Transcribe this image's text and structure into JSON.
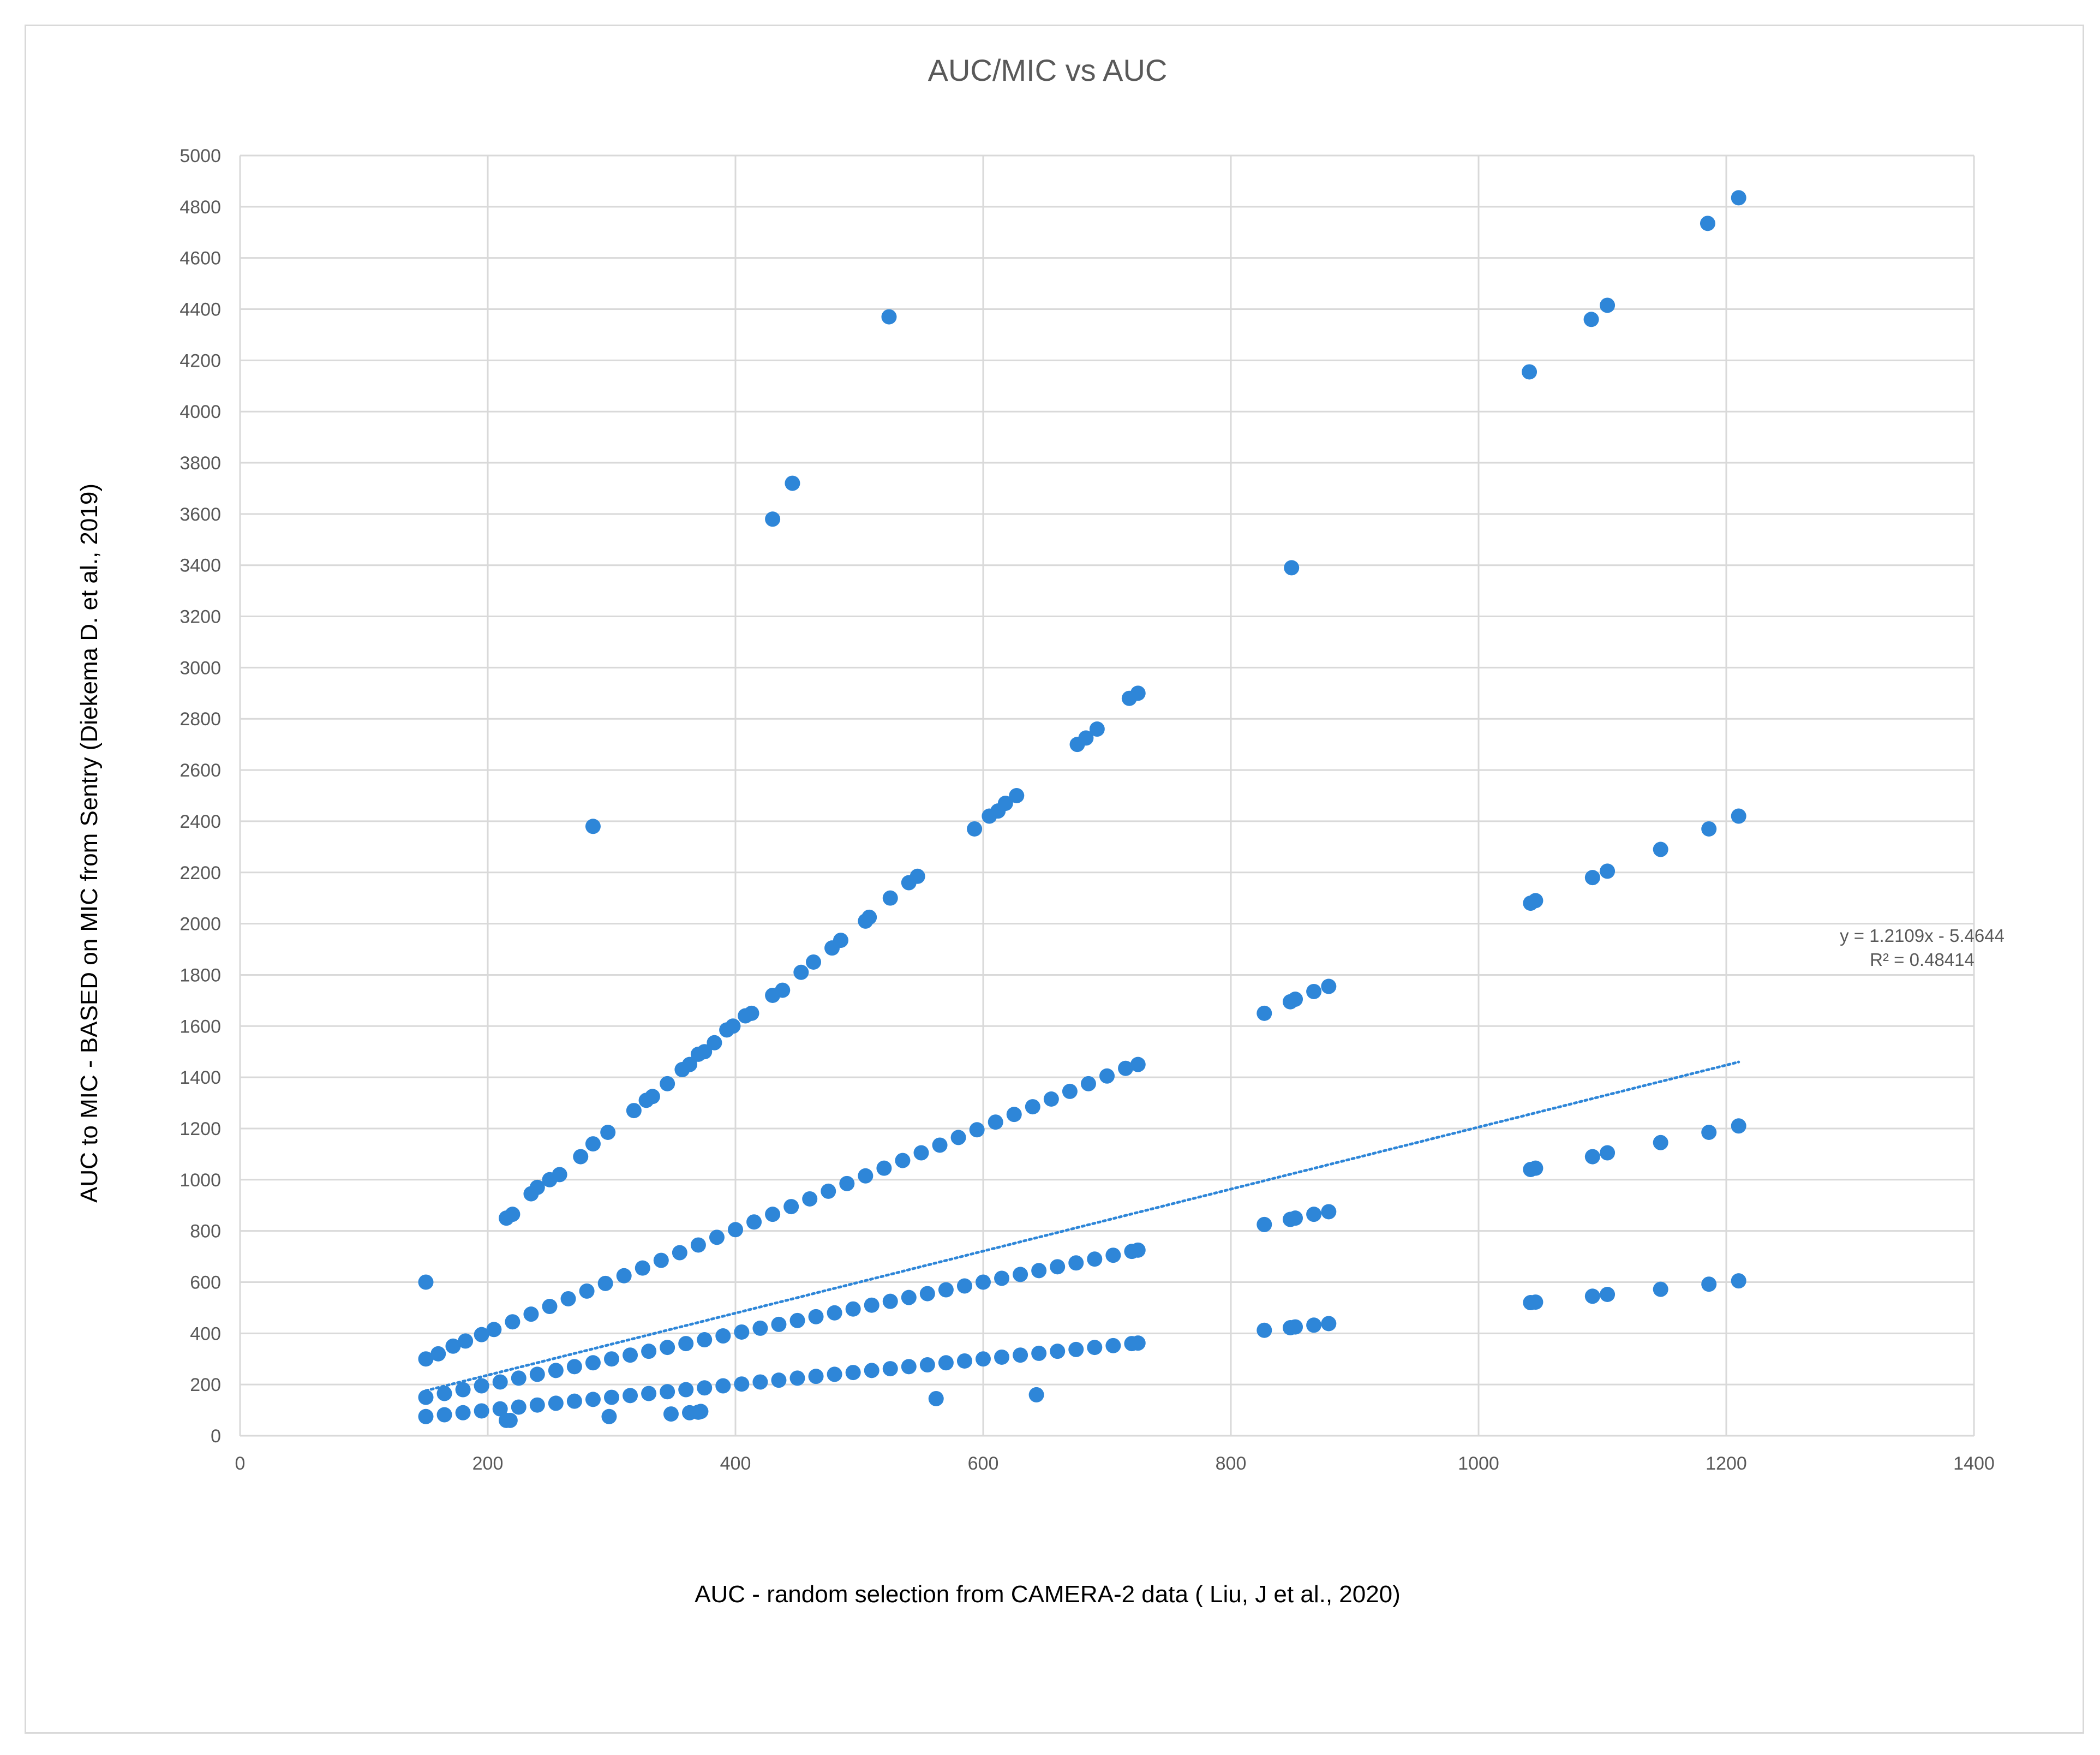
{
  "chart_data": {
    "type": "scatter",
    "title": "AUC/MIC vs AUC",
    "xlabel": "AUC - random selection from CAMERA-2 data ( Liu, J et al., 2020)",
    "ylabel": "AUC to MIC - BASED on MIC from Sentry (Diekema D. et al., 2019)",
    "xlim": [
      0,
      1400
    ],
    "ylim": [
      0,
      5000
    ],
    "x_ticks": [
      "0",
      "200",
      "400",
      "600",
      "800",
      "1000",
      "1200",
      "1400"
    ],
    "y_ticks": [
      "0",
      "200",
      "400",
      "600",
      "800",
      "1000",
      "1200",
      "1400",
      "1600",
      "1800",
      "2000",
      "2200",
      "2400",
      "2600",
      "2800",
      "3000",
      "3200",
      "3400",
      "3600",
      "3800",
      "4000",
      "4200",
      "4400",
      "4600",
      "4800",
      "5000"
    ],
    "grid": true,
    "marker_color": "#2e86d8",
    "trendline": {
      "equation": "y = 1.2109x - 5.4644",
      "r_squared": "R² = 0.48414",
      "slope": 1.2109,
      "intercept": -5.4644,
      "x_range": [
        150,
        1210
      ],
      "color": "#2e86d8",
      "style": "dotted"
    },
    "series": [
      {
        "x": [
          150,
          160,
          172,
          182,
          195,
          205,
          220,
          235,
          250,
          265,
          280,
          295,
          310,
          325,
          340,
          355,
          370,
          385,
          400,
          415,
          430,
          445,
          460,
          475,
          490,
          505,
          520,
          535,
          550,
          565,
          580,
          595,
          610,
          625,
          640,
          655,
          670,
          685,
          700,
          715,
          725
        ],
        "y": [
          300,
          320,
          350,
          370,
          395,
          415,
          445,
          475,
          505,
          535,
          565,
          595,
          625,
          655,
          685,
          715,
          745,
          775,
          805,
          835,
          865,
          895,
          925,
          955,
          985,
          1015,
          1045,
          1075,
          1105,
          1135,
          1165,
          1195,
          1225,
          1255,
          1285,
          1315,
          1345,
          1375,
          1405,
          1435,
          1450
        ]
      },
      {
        "x": [
          150,
          165,
          180,
          195,
          210,
          225,
          240,
          255,
          270,
          285,
          300,
          315,
          330,
          345,
          360,
          375,
          390,
          405,
          420,
          435,
          450,
          465,
          480,
          495,
          510,
          525,
          540,
          555,
          570,
          585,
          600,
          615,
          630,
          645,
          660,
          675,
          690,
          705,
          720,
          725
        ],
        "y": [
          150,
          165,
          180,
          195,
          210,
          225,
          240,
          255,
          270,
          285,
          300,
          315,
          330,
          345,
          360,
          375,
          390,
          405,
          420,
          435,
          450,
          465,
          480,
          495,
          510,
          525,
          540,
          555,
          570,
          585,
          600,
          615,
          630,
          645,
          660,
          675,
          690,
          705,
          720,
          725
        ]
      },
      {
        "x": [
          150,
          165,
          180,
          195,
          210,
          225,
          240,
          255,
          270,
          285,
          300,
          315,
          330,
          345,
          360,
          375,
          390,
          405,
          420,
          435,
          450,
          465,
          480,
          495,
          510,
          525,
          540,
          555,
          570,
          585,
          600,
          615,
          630,
          645,
          660,
          675,
          690,
          705,
          720,
          725
        ],
        "y": [
          75,
          82,
          90,
          97,
          105,
          112,
          120,
          127,
          135,
          142,
          150,
          157,
          165,
          172,
          180,
          187,
          195,
          202,
          210,
          217,
          225,
          232,
          240,
          247,
          255,
          262,
          270,
          277,
          285,
          292,
          300,
          307,
          315,
          322,
          330,
          337,
          345,
          352,
          360,
          362
        ]
      },
      {
        "x": [
          215,
          220,
          235,
          240,
          250,
          258,
          275,
          285,
          297,
          318,
          328,
          333,
          345,
          357,
          363,
          370,
          375,
          383,
          393,
          398,
          408,
          413,
          430,
          438,
          453,
          463,
          478,
          485,
          505,
          508,
          525,
          540,
          547,
          593,
          605,
          612,
          618,
          627,
          676,
          683,
          692,
          718,
          725
        ],
        "y": [
          850,
          865,
          945,
          970,
          1000,
          1020,
          1090,
          1140,
          1185,
          1270,
          1310,
          1325,
          1375,
          1430,
          1450,
          1490,
          1500,
          1535,
          1585,
          1600,
          1640,
          1650,
          1720,
          1740,
          1810,
          1850,
          1905,
          1935,
          2010,
          2025,
          2100,
          2160,
          2185,
          2370,
          2420,
          2440,
          2470,
          2500,
          2700,
          2725,
          2760,
          2880,
          2900
        ]
      },
      {
        "x": [
          827,
          848,
          852,
          867,
          879,
          1042,
          1046,
          1092,
          1104,
          1147,
          1186,
          1210
        ],
        "y": [
          1650,
          1695,
          1705,
          1735,
          1755,
          2080,
          2090,
          2180,
          2205,
          2290,
          2370,
          2420
        ]
      },
      {
        "x": [
          827,
          848,
          852,
          867,
          879,
          1042,
          1046,
          1092,
          1104,
          1147,
          1186,
          1210
        ],
        "y": [
          825,
          845,
          850,
          865,
          875,
          1040,
          1045,
          1090,
          1105,
          1145,
          1185,
          1210
        ]
      },
      {
        "x": [
          827,
          848,
          852,
          867,
          879,
          1042,
          1046,
          1092,
          1104,
          1147,
          1186,
          1210
        ],
        "y": [
          412,
          422,
          425,
          432,
          438,
          520,
          522,
          545,
          552,
          572,
          592,
          605
        ]
      },
      {
        "x": [
          150,
          285,
          430,
          446,
          524,
          849,
          1041,
          1091,
          1104,
          1185,
          1210,
          215,
          218,
          298,
          348,
          363,
          370,
          372,
          562,
          643
        ],
        "y": [
          600,
          2380,
          3580,
          3720,
          4370,
          3390,
          4155,
          4360,
          4415,
          4735,
          4835,
          60,
          60,
          75,
          85,
          90,
          92,
          95,
          145,
          160
        ]
      }
    ]
  }
}
